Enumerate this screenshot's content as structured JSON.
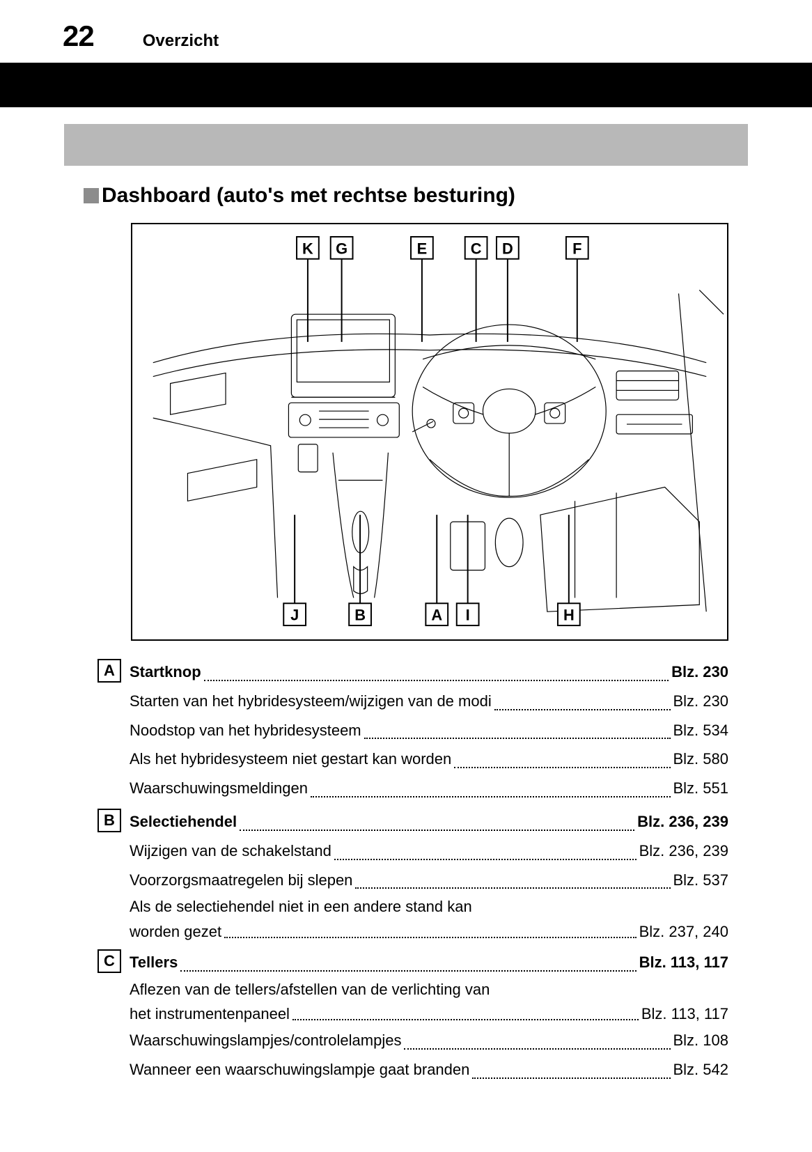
{
  "header": {
    "page_number": "22",
    "section": "Overzicht"
  },
  "heading": "Dashboard (auto's met rechtse besturing)",
  "diagram": {
    "top_labels": [
      "K",
      "G",
      "E",
      "C",
      "D",
      "F"
    ],
    "bottom_labels": [
      "J",
      "B",
      "A",
      "I",
      "H"
    ],
    "top_positions_pct": [
      29.5,
      35.2,
      48.7,
      57.8,
      63.1,
      74.8
    ],
    "bottom_positions_pct": [
      27.3,
      38.3,
      51.2,
      56.4,
      73.4
    ]
  },
  "entries": [
    {
      "code": "A",
      "rows": [
        {
          "text": "Startknop",
          "page": "Blz. 230",
          "bold": true
        },
        {
          "text": "Starten van het hybridesysteem/wijzigen van de modi ",
          "page": "Blz. 230"
        },
        {
          "text": "Noodstop van het hybridesysteem",
          "page": "Blz. 534"
        },
        {
          "text": "Als het hybridesysteem niet gestart kan worden",
          "page": "Blz. 580"
        },
        {
          "text": "Waarschuwingsmeldingen ",
          "page": "Blz. 551"
        }
      ]
    },
    {
      "code": "B",
      "rows": [
        {
          "text": "Selectiehendel ",
          "page": "Blz. 236, 239",
          "bold": true
        },
        {
          "text": "Wijzigen van de schakelstand ",
          "page": "Blz. 236, 239"
        },
        {
          "text": "Voorzorgsmaatregelen bij slepen ",
          "page": "Blz. 537"
        },
        {
          "text_lines": [
            "Als de selectiehendel niet in een andere stand kan",
            "worden gezet"
          ],
          "page": "Blz. 237, 240"
        }
      ]
    },
    {
      "code": "C",
      "rows": [
        {
          "text": "Tellers ",
          "page": "Blz. 113, 117",
          "bold": true
        },
        {
          "text_lines": [
            "Aflezen van de tellers/afstellen van de verlichting van",
            "het instrumentenpaneel"
          ],
          "page": " Blz. 113, 117"
        },
        {
          "text": "Waarschuwingslampjes/controlelampjes ",
          "page": "Blz. 108"
        },
        {
          "text": "Wanneer een waarschuwingslampje gaat branden ",
          "page": "Blz. 542"
        }
      ]
    }
  ]
}
